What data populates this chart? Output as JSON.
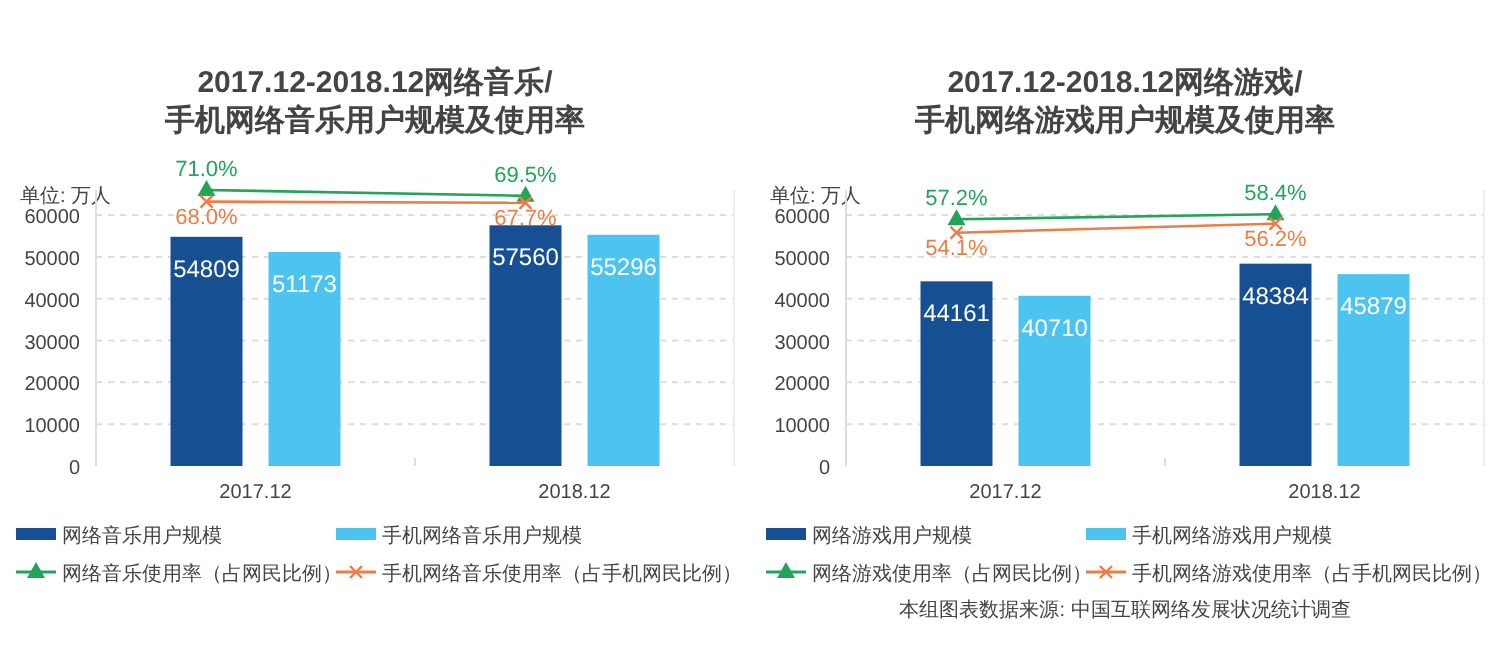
{
  "chart_data": [
    {
      "type": "bar",
      "title": "2017.12-2018.12网络音乐/手机网络音乐用户规模及使用率",
      "ylabel": "单位: 万人",
      "categories": [
        "2017.12",
        "2018.12"
      ],
      "series": [
        {
          "name": "网络音乐用户规模",
          "color": "#174f93",
          "values": [
            54809,
            57560
          ],
          "value_labels": [
            "54809",
            "57560"
          ]
        },
        {
          "name": "手机网络音乐用户规模",
          "color": "#4dc3f0",
          "values": [
            51173,
            55296
          ],
          "value_labels": [
            "51173",
            "55296"
          ]
        },
        {
          "name": "网络音乐使用率（占网民比例）",
          "type": "line",
          "axis": "y2",
          "marker": "triangle",
          "color": "#22a55a",
          "values": [
            71.0,
            69.5
          ],
          "value_labels": [
            "71.0%",
            "69.5%"
          ]
        },
        {
          "name": "手机网络音乐使用率（占手机网民比例）",
          "type": "line",
          "axis": "y2",
          "marker": "cross",
          "color": "#f07c45",
          "values": [
            68.0,
            67.7
          ],
          "value_labels": [
            "68.0%",
            "67.7%"
          ]
        }
      ],
      "ylim": [
        0,
        66000
      ],
      "yticks": [
        0,
        10000,
        20000,
        30000,
        40000,
        50000,
        60000
      ],
      "y2lim": [
        0,
        71
      ],
      "grid": "y",
      "legend": "bottom"
    },
    {
      "type": "bar",
      "title": "2017.12-2018.12网络游戏/手机网络游戏用户规模及使用率",
      "ylabel": "单位: 万人",
      "categories": [
        "2017.12",
        "2018.12"
      ],
      "series": [
        {
          "name": "网络游戏用户规模",
          "color": "#174f93",
          "values": [
            44161,
            48384
          ],
          "value_labels": [
            "44161",
            "48384"
          ]
        },
        {
          "name": "手机网络游戏用户规模",
          "color": "#4dc3f0",
          "values": [
            40710,
            45879
          ],
          "value_labels": [
            "40710",
            "45879"
          ]
        },
        {
          "name": "网络游戏使用率（占网民比例）",
          "type": "line",
          "axis": "y2",
          "marker": "triangle",
          "color": "#22a55a",
          "values": [
            57.2,
            58.4
          ],
          "value_labels": [
            "57.2%",
            "58.4%"
          ]
        },
        {
          "name": "手机网络游戏使用率（占手机网民比例）",
          "type": "line",
          "axis": "y2",
          "marker": "cross",
          "color": "#f07c45",
          "values": [
            54.1,
            56.2
          ],
          "value_labels": [
            "54.1%",
            "56.2%"
          ]
        }
      ],
      "ylim": [
        0,
        66000
      ],
      "yticks": [
        0,
        10000,
        20000,
        30000,
        40000,
        50000,
        60000
      ],
      "y2lim": [
        0,
        64
      ],
      "grid": "y",
      "legend": "bottom",
      "annotations": [
        "本组图表数据来源: 中国互联网络发展状况统计调查"
      ]
    }
  ]
}
